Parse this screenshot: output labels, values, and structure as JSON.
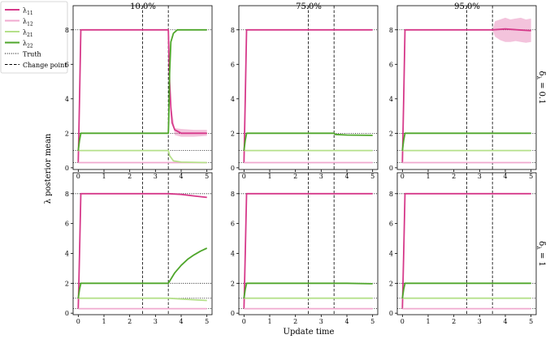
{
  "figure": {
    "ylabel": "λ posterior mean",
    "xlabel": "Update time",
    "legend_placement": "top-left",
    "legend": [
      {
        "key": "l11",
        "label_base": "λ",
        "label_sub": "11",
        "color": "#d6398a",
        "style": "solid-thick"
      },
      {
        "key": "l12",
        "label_base": "λ",
        "label_sub": "12",
        "color": "#f0a9cf",
        "style": "solid-thick"
      },
      {
        "key": "l21",
        "label_base": "λ",
        "label_sub": "21",
        "color": "#b5e08a",
        "style": "solid-thick"
      },
      {
        "key": "l22",
        "label_base": "λ",
        "label_sub": "22",
        "color": "#4fa62b",
        "style": "solid-thick"
      },
      {
        "key": "truth",
        "label": "Truth",
        "color": "#000000",
        "style": "dotted"
      },
      {
        "key": "change",
        "label": "Change point",
        "color": "#000000",
        "style": "dashed"
      }
    ],
    "column_titles": [
      "10.0%",
      "75.0%",
      "95.0%"
    ],
    "row_labels": [
      {
        "base": "δ",
        "sub": "λ",
        "rest": " = 0.1"
      },
      {
        "base": "δ",
        "sub": "λ",
        "rest": " = 1"
      }
    ]
  },
  "chart_data": {
    "type": "line",
    "grid": false,
    "xlim": [
      -0.2,
      5.2
    ],
    "ylim": [
      -0.1,
      9.4
    ],
    "xticks": [
      0,
      1,
      2,
      3,
      4,
      5
    ],
    "yticks": [
      0,
      2,
      4,
      6,
      8
    ],
    "truth_levels": [
      8,
      2,
      1,
      0.3
    ],
    "change_points": [
      2.5,
      3.5
    ],
    "panels": [
      {
        "row": 0,
        "col": 0,
        "series": [
          {
            "name": "λ11",
            "x": [
              0,
              0.05,
              0.1,
              3.5,
              3.55,
              3.6,
              3.65,
              3.75,
              4.0,
              4.5,
              5.0
            ],
            "y": [
              0.3,
              4,
              8,
              8,
              5,
              3.5,
              2.6,
              2.2,
              2.0,
              2.0,
              2.0
            ],
            "band_x": [
              3.5,
              3.6,
              3.75,
              4.0,
              4.5,
              5.0
            ],
            "band_lo": [
              8,
              3.4,
              1.9,
              1.8,
              1.8,
              1.85
            ],
            "band_hi": [
              8,
              3.7,
              2.3,
              2.25,
              2.2,
              2.2
            ]
          },
          {
            "name": "λ12",
            "x": [
              0,
              0.05,
              0.1,
              5.0
            ],
            "y": [
              0.3,
              0.3,
              0.3,
              0.3
            ]
          },
          {
            "name": "λ21",
            "x": [
              0,
              0.05,
              0.1,
              3.5,
              3.55,
              3.7,
              4.0,
              5.0
            ],
            "y": [
              1,
              1,
              1,
              1,
              0.7,
              0.4,
              0.33,
              0.3
            ]
          },
          {
            "name": "λ22",
            "x": [
              0,
              0.05,
              0.1,
              3.5,
              3.52,
              3.55,
              3.6,
              3.7,
              3.85,
              4.0,
              5.0
            ],
            "y": [
              1,
              1.6,
              2,
              2,
              3,
              5.5,
              7.3,
              7.8,
              8,
              8,
              8
            ]
          }
        ]
      },
      {
        "row": 0,
        "col": 1,
        "series": [
          {
            "name": "λ11",
            "x": [
              0,
              0.05,
              0.1,
              5.0
            ],
            "y": [
              0.3,
              4,
              8,
              8
            ]
          },
          {
            "name": "λ12",
            "x": [
              0,
              0.05,
              0.1,
              5.0
            ],
            "y": [
              0.3,
              0.3,
              0.3,
              0.3
            ]
          },
          {
            "name": "λ21",
            "x": [
              0,
              0.05,
              0.1,
              5.0
            ],
            "y": [
              1,
              1,
              1,
              1
            ]
          },
          {
            "name": "λ22",
            "x": [
              0,
              0.05,
              0.1,
              3.5,
              3.55,
              4.0,
              5.0
            ],
            "y": [
              1,
              1.6,
              2,
              2,
              1.93,
              1.9,
              1.88
            ]
          }
        ]
      },
      {
        "row": 0,
        "col": 2,
        "series": [
          {
            "name": "λ11",
            "x": [
              0,
              0.05,
              0.1,
              3.5,
              4.0,
              4.5,
              5.0
            ],
            "y": [
              0.3,
              4,
              8,
              8,
              8.05,
              8.0,
              7.95
            ],
            "band_x": [
              3.5,
              3.6,
              3.8,
              4.0,
              4.2,
              4.4,
              4.6,
              4.8,
              5.0
            ],
            "band_lo": [
              8,
              7.6,
              7.4,
              7.3,
              7.3,
              7.35,
              7.3,
              7.25,
              7.3
            ],
            "band_hi": [
              8,
              8.5,
              8.6,
              8.7,
              8.6,
              8.65,
              8.7,
              8.6,
              8.65
            ]
          },
          {
            "name": "λ12",
            "x": [
              0,
              0.05,
              0.1,
              5.0
            ],
            "y": [
              0.3,
              0.3,
              0.3,
              0.3
            ]
          },
          {
            "name": "λ21",
            "x": [
              0,
              0.05,
              0.1,
              5.0
            ],
            "y": [
              1,
              1,
              1,
              1
            ]
          },
          {
            "name": "λ22",
            "x": [
              0,
              0.05,
              0.1,
              5.0
            ],
            "y": [
              1,
              1.6,
              2,
              2
            ]
          }
        ]
      },
      {
        "row": 1,
        "col": 0,
        "series": [
          {
            "name": "λ11",
            "x": [
              0,
              0.05,
              0.1,
              3.5,
              4.0,
              4.5,
              5.0
            ],
            "y": [
              0.3,
              4,
              8,
              8,
              7.95,
              7.85,
              7.75
            ]
          },
          {
            "name": "λ12",
            "x": [
              0,
              0.05,
              0.1,
              5.0
            ],
            "y": [
              0.3,
              0.3,
              0.3,
              0.3
            ]
          },
          {
            "name": "λ21",
            "x": [
              0,
              0.05,
              0.1,
              3.5,
              4.0,
              4.5,
              5.0
            ],
            "y": [
              1,
              1,
              1,
              1,
              0.95,
              0.9,
              0.85
            ]
          },
          {
            "name": "λ22",
            "x": [
              0,
              0.05,
              0.1,
              3.5,
              3.75,
              4.0,
              4.25,
              4.5,
              4.75,
              5.0
            ],
            "y": [
              1,
              1.6,
              2,
              2,
              2.7,
              3.2,
              3.6,
              3.9,
              4.15,
              4.35
            ]
          }
        ]
      },
      {
        "row": 1,
        "col": 1,
        "series": [
          {
            "name": "λ11",
            "x": [
              0,
              0.05,
              0.1,
              5.0
            ],
            "y": [
              0.3,
              4,
              8,
              8
            ]
          },
          {
            "name": "λ12",
            "x": [
              0,
              0.05,
              0.1,
              5.0
            ],
            "y": [
              0.3,
              0.3,
              0.3,
              0.3
            ]
          },
          {
            "name": "λ21",
            "x": [
              0,
              0.05,
              0.1,
              5.0
            ],
            "y": [
              1,
              1,
              1,
              1
            ]
          },
          {
            "name": "λ22",
            "x": [
              0,
              0.05,
              0.1,
              3.5,
              4.0,
              5.0
            ],
            "y": [
              1,
              1.6,
              2,
              2,
              2.0,
              1.97
            ]
          }
        ]
      },
      {
        "row": 1,
        "col": 2,
        "series": [
          {
            "name": "λ11",
            "x": [
              0,
              0.05,
              0.1,
              5.0
            ],
            "y": [
              0.3,
              4,
              8,
              8
            ]
          },
          {
            "name": "λ12",
            "x": [
              0,
              0.05,
              0.1,
              5.0
            ],
            "y": [
              0.3,
              0.3,
              0.3,
              0.3
            ]
          },
          {
            "name": "λ21",
            "x": [
              0,
              0.05,
              0.1,
              5.0
            ],
            "y": [
              1,
              1,
              1,
              1
            ]
          },
          {
            "name": "λ22",
            "x": [
              0,
              0.05,
              0.1,
              5.0
            ],
            "y": [
              1,
              1.6,
              2,
              2
            ]
          }
        ]
      }
    ]
  }
}
